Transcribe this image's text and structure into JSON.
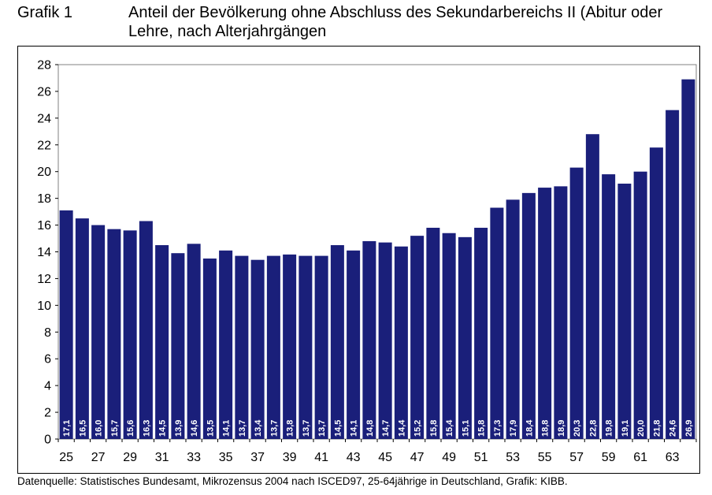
{
  "header": {
    "label": "Grafik 1",
    "title": "Anteil der Bevölkerung ohne Abschluss des Sekundarbereichs II (Abitur oder Lehre, nach Alterjahrgängen"
  },
  "source": "Datenquelle: Statistisches Bundesamt, Mikrozensus 2004 nach ISCED97, 25-64jährige in Deutschland, Grafik: KIBB.",
  "colors": {
    "bar": "#1a1f7a",
    "plot_border": "#808080"
  },
  "chart_data": {
    "type": "bar",
    "title": "Anteil der Bevölkerung ohne Abschluss des Sekundarbereichs II (Abitur oder Lehre, nach Alterjahrgängen",
    "xlabel": "",
    "ylabel": "",
    "ylim": [
      0,
      28
    ],
    "yticks": [
      0,
      2,
      4,
      6,
      8,
      10,
      12,
      14,
      16,
      18,
      20,
      22,
      24,
      26,
      28
    ],
    "grid": false,
    "categories": [
      "25",
      "26",
      "27",
      "28",
      "29",
      "30",
      "31",
      "32",
      "33",
      "34",
      "35",
      "36",
      "37",
      "38",
      "39",
      "40",
      "41",
      "42",
      "43",
      "44",
      "45",
      "46",
      "47",
      "48",
      "49",
      "50",
      "51",
      "52",
      "53",
      "54",
      "55",
      "56",
      "57",
      "58",
      "59",
      "60",
      "61",
      "62",
      "63",
      "64"
    ],
    "tick_labels": [
      "25",
      "27",
      "29",
      "31",
      "33",
      "35",
      "37",
      "39",
      "41",
      "43",
      "45",
      "47",
      "49",
      "51",
      "53",
      "55",
      "57",
      "59",
      "61",
      "63"
    ],
    "values": [
      17.1,
      16.5,
      16.0,
      15.7,
      15.6,
      16.3,
      14.5,
      13.9,
      14.6,
      13.5,
      14.1,
      13.7,
      13.4,
      13.7,
      13.8,
      13.7,
      13.7,
      14.5,
      14.1,
      14.8,
      14.7,
      14.4,
      15.2,
      15.8,
      15.4,
      15.1,
      15.8,
      17.3,
      17.9,
      18.4,
      18.8,
      18.9,
      20.3,
      22.8,
      19.8,
      19.1,
      20.0,
      21.8,
      24.6,
      26.9
    ],
    "value_labels": [
      "17,1",
      "16,5",
      "16,0",
      "15,7",
      "15,6",
      "16,3",
      "14,5",
      "13,9",
      "14,6",
      "13,5",
      "14,1",
      "13,7",
      "13,4",
      "13,7",
      "13,8",
      "13,7",
      "13,7",
      "14,5",
      "14,1",
      "14,8",
      "14,7",
      "14,4",
      "15,2",
      "15,8",
      "15,4",
      "15,1",
      "15,8",
      "17,3",
      "17,9",
      "18,4",
      "18,8",
      "18,9",
      "20,3",
      "22,8",
      "19,8",
      "19,1",
      "20,0",
      "21,8",
      "24,6",
      "26,9"
    ]
  }
}
